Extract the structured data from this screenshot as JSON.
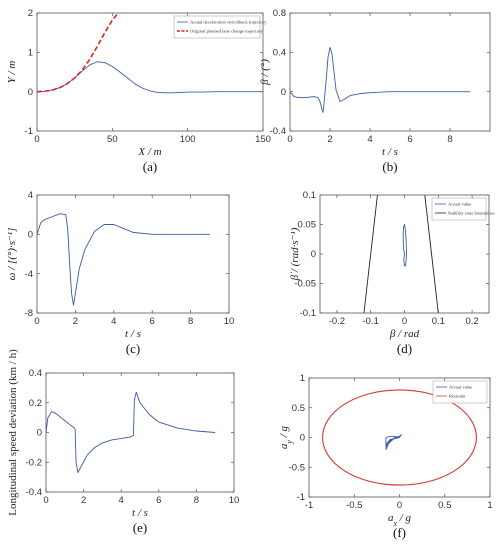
{
  "chart_data": [
    {
      "id": "a",
      "panel_label": "(a)",
      "type": "line",
      "xlabel": "X / m",
      "ylabel": "Y / m",
      "xlim": [
        0,
        150
      ],
      "ylim": [
        -1,
        2
      ],
      "xticks": [
        0,
        50,
        100,
        150
      ],
      "yticks": [
        -1,
        0,
        1,
        2
      ],
      "legend": "top-right",
      "series": [
        {
          "name": "Actual deceleration switchback trajectory",
          "color": "#3b5ba5",
          "style": "solid",
          "x": [
            0,
            5,
            10,
            15,
            20,
            25,
            30,
            35,
            40,
            45,
            50,
            55,
            60,
            65,
            70,
            75,
            80,
            85,
            90,
            95,
            100,
            110,
            120,
            130,
            140,
            150
          ],
          "y": [
            0,
            0.01,
            0.04,
            0.1,
            0.2,
            0.35,
            0.52,
            0.68,
            0.76,
            0.74,
            0.64,
            0.5,
            0.35,
            0.2,
            0.09,
            0.02,
            -0.02,
            -0.03,
            -0.03,
            -0.02,
            -0.01,
            -0.01,
            0,
            0,
            0,
            0
          ]
        },
        {
          "name": "Original planned lane change trajectory",
          "color": "#dd2222",
          "style": "dashed",
          "x": [
            0,
            5,
            10,
            15,
            20,
            25,
            30,
            35,
            40,
            45,
            50,
            55
          ],
          "y": [
            0,
            0.01,
            0.04,
            0.1,
            0.2,
            0.35,
            0.55,
            0.82,
            1.15,
            1.5,
            1.82,
            2.05
          ]
        }
      ]
    },
    {
      "id": "b",
      "panel_label": "(b)",
      "type": "line",
      "xlabel": "t / s",
      "ylabel": "β / (°)",
      "xlim": [
        0,
        10
      ],
      "ylim": [
        -0.4,
        0.8
      ],
      "xticks": [
        0,
        2,
        4,
        6,
        8
      ],
      "yticks": [
        -0.4,
        0,
        0.4,
        0.8
      ],
      "series": [
        {
          "color": "#3b5ba5",
          "x": [
            0,
            0.2,
            0.4,
            0.8,
            1.2,
            1.4,
            1.5,
            1.6,
            1.65,
            1.7,
            1.8,
            1.9,
            2.0,
            2.1,
            2.2,
            2.3,
            2.5,
            2.7,
            3.0,
            3.5,
            4,
            5,
            6,
            7,
            8,
            9
          ],
          "y": [
            0,
            -0.05,
            -0.06,
            -0.06,
            -0.05,
            -0.06,
            -0.1,
            -0.18,
            -0.21,
            -0.12,
            0.1,
            0.35,
            0.45,
            0.38,
            0.2,
            0.02,
            -0.1,
            -0.08,
            -0.04,
            -0.02,
            -0.01,
            0,
            0,
            0,
            0,
            0
          ]
        }
      ]
    },
    {
      "id": "c",
      "panel_label": "(c)",
      "type": "line",
      "xlabel": "t / s",
      "ylabel": "ω / [(°)·s⁻¹]",
      "xlim": [
        0,
        10
      ],
      "ylim": [
        -8,
        4
      ],
      "xticks": [
        0,
        2,
        4,
        6,
        8,
        10
      ],
      "yticks": [
        -8,
        -4,
        0,
        4
      ],
      "series": [
        {
          "color": "#3b5ba5",
          "x": [
            0,
            0.2,
            0.4,
            0.8,
            1.2,
            1.5,
            1.6,
            1.7,
            1.8,
            1.9,
            2.0,
            2.2,
            2.5,
            3.0,
            3.5,
            4.0,
            4.5,
            5,
            6,
            7,
            8,
            9
          ],
          "y": [
            0,
            1.2,
            1.5,
            1.8,
            2.1,
            2.0,
            0.5,
            -3,
            -6,
            -7.2,
            -6,
            -3.5,
            -1.5,
            0.3,
            1.0,
            1.0,
            0.6,
            0.2,
            0,
            0,
            0,
            0
          ]
        }
      ]
    },
    {
      "id": "d",
      "panel_label": "(d)",
      "type": "line",
      "xlabel": "β / rad",
      "ylabel": "β̇ / (rad·s⁻¹)",
      "xlim": [
        -0.25,
        0.25
      ],
      "ylim": [
        -0.1,
        0.1
      ],
      "xticks": [
        -0.2,
        -0.1,
        0,
        0.1,
        0.2
      ],
      "yticks": [
        -0.1,
        -0.05,
        0,
        0.05,
        0.1
      ],
      "legend": "top-right",
      "series": [
        {
          "name": "Actual value",
          "color": "#3b5ba5",
          "x": [
            0,
            -0.003,
            -0.004,
            -0.003,
            0,
            0.003,
            0.005,
            0.006,
            0.005,
            0.003,
            0,
            -0.002,
            0
          ],
          "y": [
            0,
            0.01,
            0.03,
            0.045,
            0.05,
            0.04,
            0.02,
            0,
            -0.01,
            -0.02,
            -0.02,
            -0.01,
            0
          ]
        },
        {
          "name": "Stability zone boundaries",
          "color": "#222222",
          "x": [
            -0.08,
            -0.12
          ],
          "y": [
            0.1,
            -0.1
          ]
        },
        {
          "name": "",
          "color": "#222222",
          "x": [
            0.06,
            0.1
          ],
          "y": [
            0.1,
            -0.1
          ]
        }
      ]
    },
    {
      "id": "e",
      "panel_label": "(e)",
      "type": "line",
      "xlabel": "t / s",
      "ylabel": "Longitudinal speed deviation (km / h)",
      "xlim": [
        0,
        10
      ],
      "ylim": [
        -0.4,
        0.4
      ],
      "xticks": [
        0,
        2,
        4,
        6,
        8,
        10
      ],
      "yticks": [
        -0.4,
        -0.2,
        0,
        0.2,
        0.4
      ],
      "series": [
        {
          "color": "#3b5ba5",
          "x": [
            0,
            0.1,
            0.3,
            0.5,
            0.8,
            1.0,
            1.2,
            1.5,
            1.55,
            1.6,
            1.7,
            1.9,
            2.2,
            2.6,
            3.0,
            3.5,
            4.0,
            4.5,
            4.65,
            4.7,
            4.8,
            5.0,
            5.5,
            6,
            7,
            8,
            9
          ],
          "y": [
            0,
            0.1,
            0.14,
            0.13,
            0.1,
            0.08,
            0.06,
            0.03,
            0.02,
            -0.2,
            -0.27,
            -0.22,
            -0.15,
            -0.1,
            -0.07,
            -0.05,
            -0.04,
            -0.03,
            -0.02,
            0.22,
            0.27,
            0.2,
            0.12,
            0.07,
            0.03,
            0.01,
            0
          ]
        }
      ]
    },
    {
      "id": "f",
      "panel_label": "(f)",
      "type": "line",
      "xlabel": "a_x / g",
      "ylabel": "a_y / g",
      "xlim": [
        -1,
        1
      ],
      "ylim": [
        -1,
        1
      ],
      "xticks": [
        -1,
        -0.5,
        0,
        0.5,
        1
      ],
      "yticks": [
        -1,
        -0.5,
        0,
        0.5,
        1
      ],
      "legend": "top-right",
      "series": [
        {
          "name": "Actual value",
          "color": "#3b5ba5",
          "x": [
            0,
            -0.05,
            -0.1,
            -0.15,
            -0.15,
            -0.1,
            -0.05,
            0,
            0.02,
            0,
            -0.05,
            -0.1,
            -0.14,
            -0.15,
            -0.12,
            -0.05,
            0
          ],
          "y": [
            0,
            0.02,
            0.02,
            0.0,
            -0.15,
            -0.05,
            0.0,
            0.02,
            0.05,
            0.0,
            -0.02,
            -0.03,
            -0.1,
            -0.2,
            -0.1,
            0.0,
            0
          ]
        },
        {
          "name": "Restraint",
          "color": "#dd3333",
          "shape": "ellipse",
          "center": [
            0,
            0
          ],
          "rx": 0.85,
          "ry": 0.8
        }
      ]
    }
  ]
}
